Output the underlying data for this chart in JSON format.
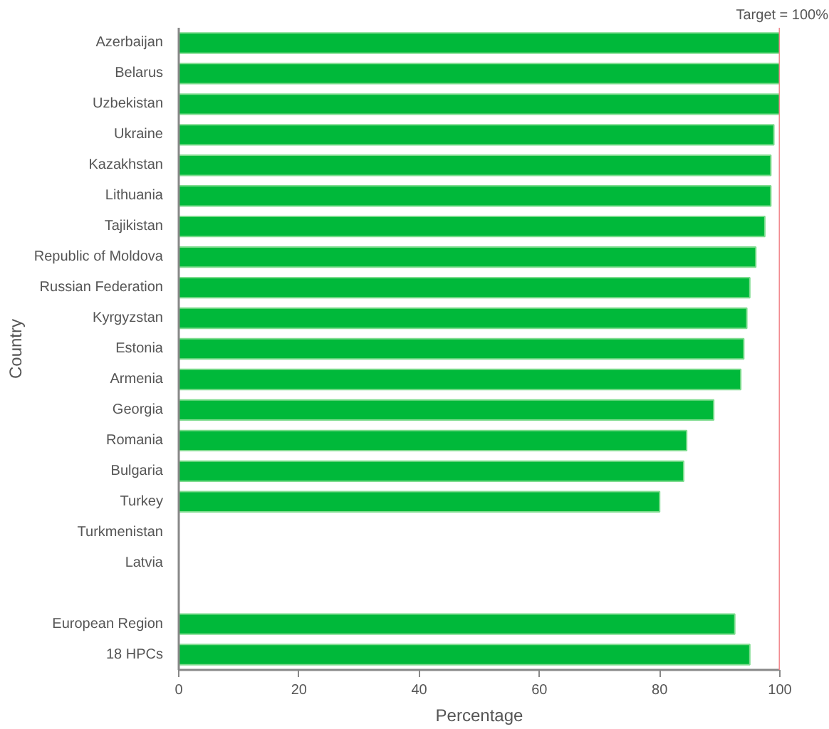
{
  "chart_data": {
    "type": "bar",
    "orientation": "horizontal",
    "categories": [
      "Azerbaijan",
      "Belarus",
      "Uzbekistan",
      "Ukraine",
      "Kazakhstan",
      "Lithuania",
      "Tajikistan",
      "Republic of Moldova",
      "Russian Federation",
      "Kyrgyzstan",
      "Estonia",
      "Armenia",
      "Georgia",
      "Romania",
      "Bulgaria",
      "Turkey",
      "Turkmenistan",
      "Latvia",
      null,
      "European Region",
      "18 HPCs"
    ],
    "values": [
      100,
      100,
      100,
      99,
      98.5,
      98.5,
      97.5,
      96,
      95,
      94.5,
      94,
      93.5,
      89,
      84.5,
      84,
      80,
      null,
      null,
      null,
      92.5,
      95
    ],
    "color": "#00b93a",
    "xlim": [
      0,
      100
    ],
    "xticks": [
      0,
      20,
      40,
      60,
      80,
      100
    ],
    "xlabel": "Percentage",
    "ylabel": "Country",
    "ref_lines": [
      {
        "axis": "x",
        "value": 100,
        "label": "Target = 100%",
        "color": "#f28a8f"
      }
    ]
  }
}
